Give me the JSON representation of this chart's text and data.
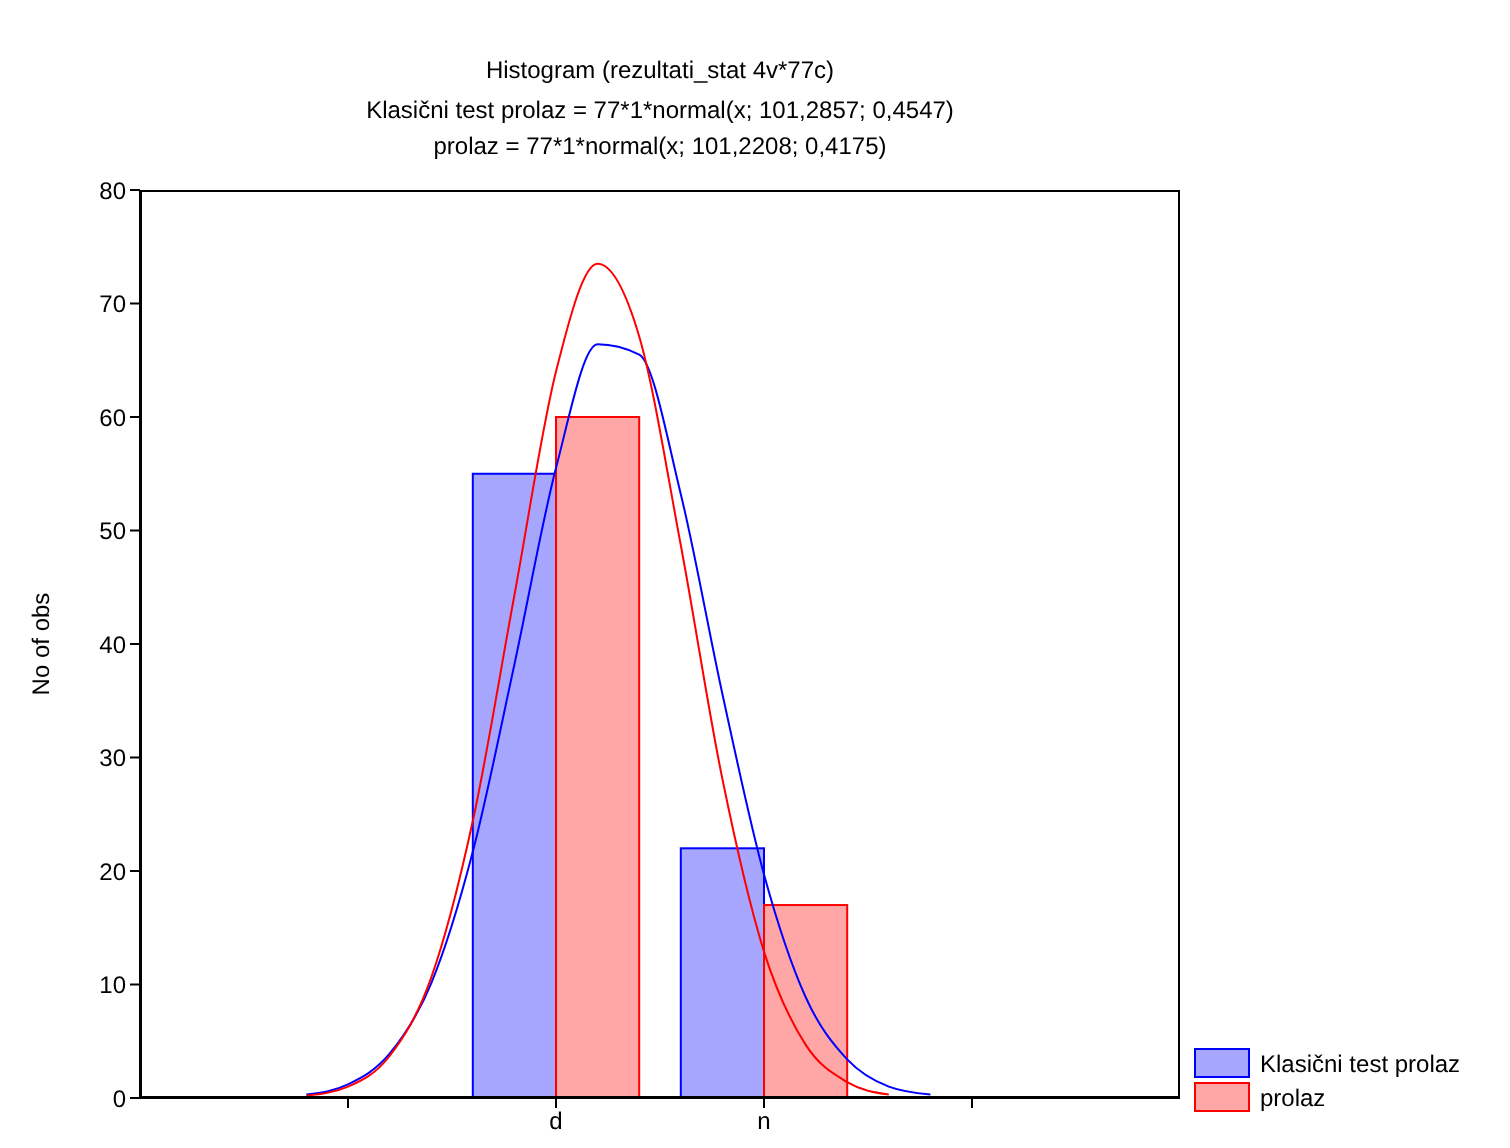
{
  "chart_data": {
    "type": "bar",
    "title": "Histogram (rezultati_stat 4v*77c)",
    "subtitle": "Klasični test prolaz = 77*1*normal(x; 101,2857; 0,4547)\nprolaz = 77*1*normal(x; 101,2208; 0,4175)",
    "ylabel": "No of obs",
    "categories": [
      null,
      null,
      null,
      null,
      null,
      null,
      null,
      null,
      null,
      null,
      "d",
      null,
      null,
      null,
      null,
      "n",
      null,
      null,
      null,
      null,
      null,
      null,
      null,
      null,
      null,
      null
    ],
    "series": [
      {
        "name": "Klasični test prolaz",
        "color": "#0000ff",
        "values": [
          null,
          null,
          null,
          null,
          null,
          null,
          null,
          null,
          null,
          55,
          null,
          null,
          null,
          null,
          22,
          null,
          null,
          null,
          null,
          null,
          null,
          null,
          null,
          null,
          null,
          null
        ]
      },
      {
        "name": "prolaz",
        "color": "#ff0000",
        "values": [
          null,
          null,
          null,
          null,
          null,
          null,
          null,
          null,
          null,
          null,
          null,
          60,
          null,
          null,
          null,
          null,
          17,
          null,
          null,
          null,
          null,
          null,
          null,
          null,
          null,
          null
        ]
      },
      {
        "type": "line",
        "color": "#0000ff",
        "values": [
          null,
          null,
          null,
          null,
          0.3,
          1.2,
          3.9,
          10.1,
          21.7,
          38.2,
          55.5,
          66.4,
          65.5,
          53.2,
          35.6,
          19.7,
          8.9,
          3.4,
          1.0,
          0.3,
          null,
          null,
          null,
          null,
          null,
          null
        ]
      },
      {
        "type": "line",
        "color": "#ff0000",
        "values": [
          null,
          null,
          null,
          null,
          0.2,
          1.0,
          3.7,
          10.6,
          24.4,
          44.3,
          64.0,
          73.5,
          67.1,
          48.7,
          28.1,
          12.9,
          4.7,
          1.4,
          0.3,
          null,
          null,
          null,
          null,
          null,
          null,
          null
        ]
      }
    ],
    "ylim": [
      0,
      80
    ],
    "yticks": [
      0,
      10,
      20,
      30,
      40,
      50,
      60,
      70,
      80
    ],
    "legend": "bottom right"
  }
}
